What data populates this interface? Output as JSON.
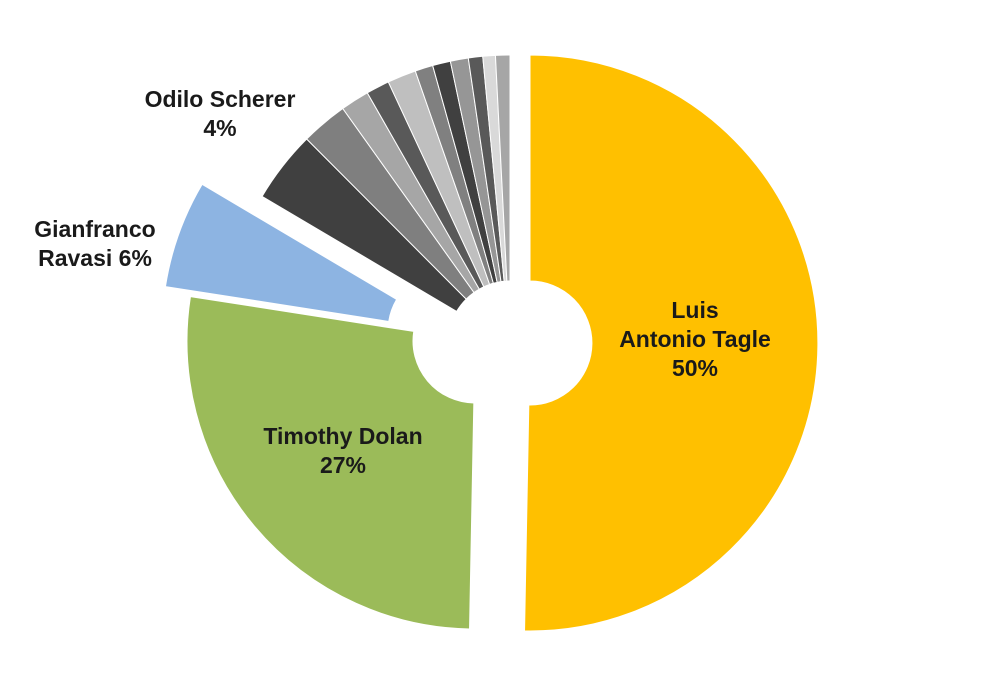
{
  "chart_data": {
    "type": "pie",
    "title": "",
    "hole": true,
    "slices": [
      {
        "name": "Luis Antonio Tagle",
        "value": 50,
        "color": "#FFC000",
        "label_lines": [
          "Luis",
          "Antonio Tagle",
          "50%"
        ],
        "exploded": true
      },
      {
        "name": "Timothy Dolan",
        "value": 27,
        "color": "#9BBB59",
        "label_lines": [
          "Timothy Dolan",
          "27%"
        ],
        "exploded": true
      },
      {
        "name": "Gianfranco Ravasi",
        "value": 6,
        "color": "#8DB4E2",
        "label_lines": [
          "Gianfranco",
          "Ravasi 6%"
        ],
        "exploded": true
      },
      {
        "name": "Odilo Scherer",
        "value": 4,
        "color": "#404040",
        "label_lines": [
          "Odilo Scherer",
          "4%"
        ],
        "exploded": false
      },
      {
        "name": "",
        "value": 2.6,
        "color": "#7F7F7F",
        "label_lines": [],
        "exploded": false
      },
      {
        "name": "",
        "value": 1.6,
        "color": "#A6A6A6",
        "label_lines": [],
        "exploded": false
      },
      {
        "name": "",
        "value": 1.3,
        "color": "#595959",
        "label_lines": [],
        "exploded": false
      },
      {
        "name": "",
        "value": 1.6,
        "color": "#BFBFBF",
        "label_lines": [],
        "exploded": false
      },
      {
        "name": "",
        "value": 1.0,
        "color": "#808080",
        "label_lines": [],
        "exploded": false
      },
      {
        "name": "",
        "value": 1.0,
        "color": "#404040",
        "label_lines": [],
        "exploded": false
      },
      {
        "name": "",
        "value": 1.0,
        "color": "#969696",
        "label_lines": [],
        "exploded": false
      },
      {
        "name": "",
        "value": 0.8,
        "color": "#595959",
        "label_lines": [],
        "exploded": false
      },
      {
        "name": "",
        "value": 0.7,
        "color": "#D9D9D9",
        "label_lines": [],
        "exploded": false
      },
      {
        "name": "",
        "value": 0.8,
        "color": "#A6A6A6",
        "label_lines": [],
        "exploded": false
      }
    ]
  }
}
